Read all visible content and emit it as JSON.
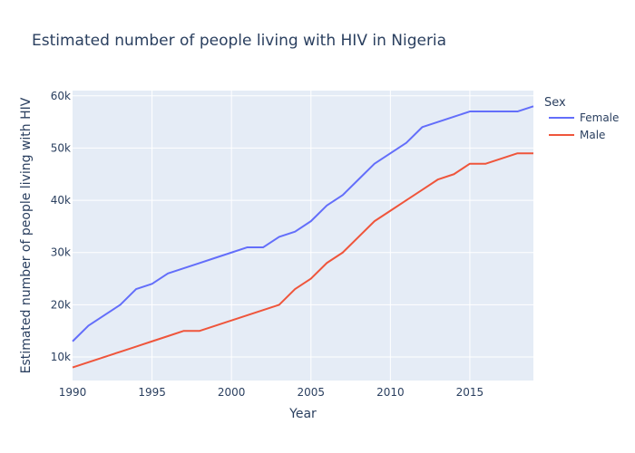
{
  "chart_data": {
    "type": "line",
    "title": "Estimated number of people living with HIV in Nigeria",
    "xlabel": "Year",
    "ylabel": "Estimated number of people living with HIV",
    "xlim": [
      1990,
      2019
    ],
    "ylim": [
      5500,
      61000
    ],
    "x_ticks": [
      1990,
      1995,
      2000,
      2005,
      2010,
      2015
    ],
    "x_tick_labels": [
      "1990",
      "1995",
      "2000",
      "2005",
      "2010",
      "2015"
    ],
    "y_ticks": [
      10000,
      20000,
      30000,
      40000,
      50000,
      60000
    ],
    "y_tick_labels": [
      "10k",
      "20k",
      "30k",
      "40k",
      "50k",
      "60k"
    ],
    "grid": true,
    "legend": {
      "title": "Sex",
      "placement": "right"
    },
    "x": [
      1990,
      1991,
      1992,
      1993,
      1994,
      1995,
      1996,
      1997,
      1998,
      1999,
      2000,
      2001,
      2002,
      2003,
      2004,
      2005,
      2006,
      2007,
      2008,
      2009,
      2010,
      2011,
      2012,
      2013,
      2014,
      2015,
      2016,
      2017,
      2018,
      2019
    ],
    "series": [
      {
        "name": "Female",
        "color": "#636efa",
        "values": [
          13000,
          16000,
          18000,
          20000,
          23000,
          24000,
          26000,
          27000,
          28000,
          29000,
          30000,
          31000,
          31000,
          33000,
          34000,
          36000,
          39000,
          41000,
          44000,
          47000,
          49000,
          51000,
          54000,
          55000,
          56000,
          57000,
          57000,
          57000,
          57000,
          58000
        ]
      },
      {
        "name": "Male",
        "color": "#ef553b",
        "values": [
          8000,
          9000,
          10000,
          11000,
          12000,
          13000,
          14000,
          15000,
          15000,
          16000,
          17000,
          18000,
          19000,
          20000,
          23000,
          25000,
          28000,
          30000,
          33000,
          36000,
          38000,
          40000,
          42000,
          44000,
          45000,
          47000,
          47000,
          48000,
          49000,
          49000
        ]
      }
    ]
  }
}
